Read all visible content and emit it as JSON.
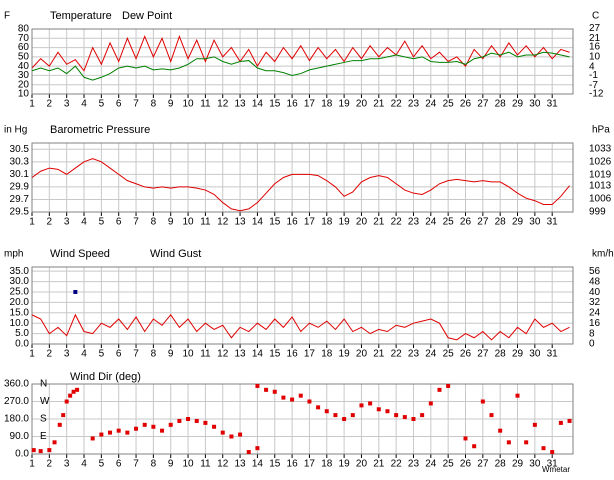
{
  "chart_data": [
    {
      "type": "line",
      "y_label": "F",
      "y2_label": "C",
      "xlim": [
        1,
        32.2
      ],
      "xticks": [
        1,
        2,
        3,
        4,
        5,
        6,
        7,
        8,
        9,
        10,
        11,
        12,
        13,
        14,
        15,
        16,
        17,
        18,
        19,
        20,
        21,
        22,
        23,
        24,
        25,
        26,
        27,
        28,
        29,
        30,
        31
      ],
      "ylim": [
        10,
        80
      ],
      "yticks": [
        10,
        20,
        30,
        40,
        50,
        60,
        70,
        80
      ],
      "y2lim": [
        -12.2,
        26.7
      ],
      "y2ticks": [
        27,
        21,
        16,
        10,
        4,
        -1,
        -7,
        -12
      ],
      "grid": true,
      "x": [
        1,
        1.5,
        2,
        2.5,
        3,
        3.5,
        4,
        4.5,
        5,
        5.5,
        6,
        6.5,
        7,
        7.5,
        8,
        8.5,
        9,
        9.5,
        10,
        10.5,
        11,
        11.5,
        12,
        12.5,
        13,
        13.5,
        14,
        14.5,
        15,
        15.5,
        16,
        16.5,
        17,
        17.5,
        18,
        18.5,
        19,
        19.5,
        20,
        20.5,
        21,
        21.5,
        22,
        22.5,
        23,
        23.5,
        24,
        24.5,
        25,
        25.5,
        26,
        26.5,
        27,
        27.5,
        28,
        28.5,
        29,
        29.5,
        30,
        30.5,
        31,
        31.5,
        32
      ],
      "series": [
        {
          "name": "Temperature",
          "color": "#e00000",
          "values": [
            38,
            48,
            40,
            55,
            42,
            47,
            35,
            60,
            42,
            65,
            45,
            70,
            48,
            72,
            50,
            70,
            45,
            72,
            48,
            68,
            45,
            68,
            50,
            60,
            45,
            58,
            40,
            55,
            45,
            60,
            48,
            62,
            46,
            60,
            48,
            58,
            45,
            60,
            48,
            62,
            50,
            60,
            52,
            67,
            50,
            62,
            48,
            55,
            45,
            50,
            40,
            58,
            48,
            62,
            50,
            65,
            52,
            62,
            50,
            60,
            48,
            58,
            55
          ]
        },
        {
          "name": "Dew Point",
          "color": "#008000",
          "values": [
            35,
            38,
            35,
            38,
            32,
            40,
            28,
            25,
            28,
            32,
            38,
            40,
            38,
            40,
            36,
            37,
            36,
            38,
            42,
            48,
            48,
            50,
            45,
            42,
            45,
            46,
            38,
            35,
            35,
            33,
            30,
            32,
            36,
            38,
            40,
            42,
            44,
            46,
            46,
            48,
            48,
            50,
            52,
            50,
            48,
            50,
            45,
            44,
            44,
            45,
            42,
            48,
            50,
            54,
            52,
            55,
            50,
            52,
            52,
            55,
            54,
            52,
            50
          ]
        }
      ]
    },
    {
      "type": "line",
      "y_label": "in Hg",
      "y2_label": "hPa",
      "xlim": [
        1,
        32.2
      ],
      "xticks": [
        1,
        2,
        3,
        4,
        5,
        6,
        7,
        8,
        9,
        10,
        11,
        12,
        13,
        14,
        15,
        16,
        17,
        18,
        19,
        20,
        21,
        22,
        23,
        24,
        25,
        26,
        27,
        28,
        29,
        30,
        31
      ],
      "ylim": [
        29.5,
        30.6
      ],
      "yticks": [
        29.5,
        29.7,
        29.9,
        30.1,
        30.3,
        30.5
      ],
      "y2lim": [
        999.0,
        1036.2
      ],
      "y2ticks": [
        999,
        1006,
        1013,
        1019,
        1026,
        1033
      ],
      "grid": true,
      "x": [
        1,
        1.5,
        2,
        2.5,
        3,
        3.5,
        4,
        4.5,
        5,
        5.5,
        6,
        6.5,
        7,
        7.5,
        8,
        8.5,
        9,
        9.5,
        10,
        10.5,
        11,
        11.5,
        12,
        12.5,
        13,
        13.5,
        14,
        14.5,
        15,
        15.5,
        16,
        16.5,
        17,
        17.5,
        18,
        18.5,
        19,
        19.5,
        20,
        20.5,
        21,
        21.5,
        22,
        22.5,
        23,
        23.5,
        24,
        24.5,
        25,
        25.5,
        26,
        26.5,
        27,
        27.5,
        28,
        28.5,
        29,
        29.5,
        30,
        30.5,
        31,
        31.5,
        32
      ],
      "series": [
        {
          "name": "Barometric Pressure",
          "color": "#e00000",
          "values": [
            30.05,
            30.15,
            30.2,
            30.18,
            30.1,
            30.2,
            30.3,
            30.35,
            30.3,
            30.2,
            30.1,
            30.0,
            29.95,
            29.9,
            29.88,
            29.9,
            29.88,
            29.9,
            29.9,
            29.88,
            29.85,
            29.78,
            29.65,
            29.55,
            29.52,
            29.55,
            29.65,
            29.8,
            29.95,
            30.05,
            30.1,
            30.1,
            30.1,
            30.08,
            30.0,
            29.9,
            29.75,
            29.82,
            29.98,
            30.05,
            30.08,
            30.05,
            29.95,
            29.85,
            29.8,
            29.78,
            29.85,
            29.95,
            30.0,
            30.02,
            30.0,
            29.98,
            30.0,
            29.98,
            29.98,
            29.9,
            29.8,
            29.72,
            29.68,
            29.62,
            29.62,
            29.75,
            29.92
          ]
        }
      ]
    },
    {
      "type": "line",
      "y_label": "mph",
      "y2_label": "km/h",
      "xlim": [
        1,
        32.2
      ],
      "xticks": [
        1,
        2,
        3,
        4,
        5,
        6,
        7,
        8,
        9,
        10,
        11,
        12,
        13,
        14,
        15,
        16,
        17,
        18,
        19,
        20,
        21,
        22,
        23,
        24,
        25,
        26,
        27,
        28,
        29,
        30,
        31
      ],
      "ylim": [
        0,
        37
      ],
      "yticks": [
        {
          "value": 0,
          "label": "0.0"
        },
        {
          "value": 5,
          "label": "5.0"
        },
        {
          "value": 10,
          "label": "10.0"
        },
        {
          "value": 15,
          "label": "15.0"
        },
        {
          "value": 20,
          "label": "20.0"
        },
        {
          "value": 25,
          "label": "25.0"
        },
        {
          "value": 30,
          "label": "30.0"
        },
        {
          "value": 35,
          "label": "35.0"
        }
      ],
      "y2lim": [
        0,
        59.5
      ],
      "y2ticks": [
        0,
        8,
        16,
        24,
        32,
        40,
        48,
        56
      ],
      "grid": true,
      "x": [
        1,
        1.5,
        2,
        2.5,
        3,
        3.5,
        4,
        4.5,
        5,
        5.5,
        6,
        6.5,
        7,
        7.5,
        8,
        8.5,
        9,
        9.5,
        10,
        10.5,
        11,
        11.5,
        12,
        12.5,
        13,
        13.5,
        14,
        14.5,
        15,
        15.5,
        16,
        16.5,
        17,
        17.5,
        18,
        18.5,
        19,
        19.5,
        20,
        20.5,
        21,
        21.5,
        22,
        22.5,
        23,
        23.5,
        24,
        24.5,
        25,
        25.5,
        26,
        26.5,
        27,
        27.5,
        28,
        28.5,
        29,
        29.5,
        30,
        30.5,
        31,
        31.5,
        32
      ],
      "series": [
        {
          "name": "Wind Speed",
          "color": "#e00000",
          "values": [
            14,
            12,
            5,
            8,
            4,
            14,
            6,
            5,
            10,
            8,
            12,
            7,
            13,
            6,
            12,
            9,
            14,
            8,
            12,
            6,
            10,
            7,
            9,
            3,
            8,
            6,
            10,
            7,
            12,
            8,
            13,
            6,
            10,
            8,
            11,
            7,
            12,
            6,
            8,
            5,
            7,
            6,
            9,
            8,
            10,
            11,
            12,
            10,
            3,
            2,
            5,
            3,
            6,
            2,
            6,
            3,
            8,
            5,
            12,
            8,
            10,
            6,
            8
          ]
        },
        {
          "name": "Wind Gust",
          "color": "#000080",
          "type": "scatter",
          "x": [
            3.5
          ],
          "values": [
            25
          ]
        }
      ]
    },
    {
      "type": "scatter",
      "compass": [
        "N",
        "W",
        "S",
        "E"
      ],
      "footer": "Wmetar",
      "xlim": [
        1,
        32.2
      ],
      "xticks": [
        1,
        2,
        3,
        4,
        5,
        6,
        7,
        8,
        9,
        10,
        11,
        12,
        13,
        14,
        15,
        16,
        17,
        18,
        19,
        20,
        21,
        22,
        23,
        24,
        25,
        26,
        27,
        28,
        29,
        30,
        31
      ],
      "ylim": [
        0,
        360
      ],
      "yticks": [
        {
          "value": 0,
          "label": "0.0"
        },
        {
          "value": 90,
          "label": "90.0"
        },
        {
          "value": 180,
          "label": "180.0"
        },
        {
          "value": 270,
          "label": "270.0"
        },
        {
          "value": 360,
          "label": "360.0"
        }
      ],
      "grid": true,
      "series": [
        {
          "name": "Wind Dir (deg)",
          "color": "#e00000",
          "x": [
            1.1,
            1.5,
            2,
            2.3,
            2.6,
            2.8,
            3,
            3.2,
            3.4,
            3.6,
            4.5,
            5,
            5.5,
            6,
            6.5,
            7,
            7.5,
            8,
            8.5,
            9,
            9.5,
            10,
            10.5,
            11,
            11.5,
            12,
            12.5,
            13,
            13.5,
            14,
            14,
            14.5,
            15,
            15.5,
            16,
            16.5,
            17,
            17.5,
            18,
            18.5,
            19,
            19.5,
            20,
            20.5,
            21,
            21.5,
            22,
            22.5,
            23,
            23.5,
            24,
            24.5,
            25,
            26,
            26.5,
            27,
            27.5,
            28,
            28.5,
            29,
            29.5,
            30,
            30.5,
            31,
            31.5,
            32
          ],
          "values": [
            20,
            15,
            20,
            60,
            150,
            200,
            270,
            300,
            320,
            330,
            80,
            100,
            110,
            120,
            110,
            130,
            150,
            140,
            120,
            150,
            170,
            180,
            170,
            160,
            140,
            110,
            90,
            100,
            10,
            30,
            350,
            330,
            320,
            290,
            280,
            300,
            270,
            240,
            220,
            200,
            180,
            200,
            250,
            260,
            230,
            220,
            200,
            190,
            180,
            200,
            260,
            330,
            350,
            80,
            40,
            270,
            200,
            120,
            60,
            300,
            60,
            150,
            30,
            10,
            160,
            170
          ]
        }
      ]
    }
  ]
}
